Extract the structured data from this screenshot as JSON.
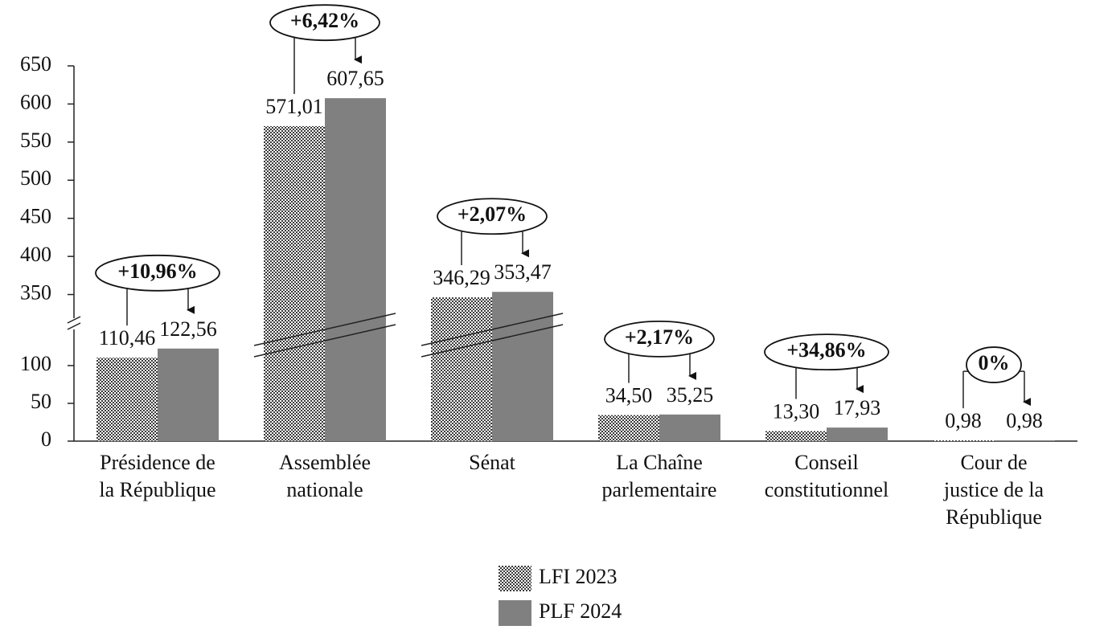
{
  "chart_data": {
    "type": "bar",
    "categories": [
      [
        "Présidence de",
        "la République"
      ],
      [
        "Assemblée",
        "nationale"
      ],
      [
        "Sénat"
      ],
      [
        "La Chaîne",
        "parlementaire"
      ],
      [
        "Conseil",
        "constitutionnel"
      ],
      [
        "Cour de",
        "justice de la",
        "République"
      ]
    ],
    "series": [
      {
        "name": "LFI 2023",
        "color": "#3a3a3a",
        "pattern": "checker",
        "values": [
          110.46,
          571.01,
          346.29,
          34.5,
          13.3,
          0.98
        ],
        "value_labels": [
          "110,46",
          "571,01",
          "346,29",
          "34,50",
          "13,30",
          "0,98"
        ]
      },
      {
        "name": "PLF 2024",
        "color": "#808080",
        "values": [
          122.56,
          607.65,
          353.47,
          35.25,
          17.93,
          0.98
        ],
        "value_labels": [
          "122,56",
          "607,65",
          "353,47",
          "35,25",
          "17,93",
          "0,98"
        ]
      }
    ],
    "changes": [
      "+10,96%",
      "+6,42%",
      "+2,07%",
      "+2,17%",
      "+34,86%",
      "0%"
    ],
    "y_segments": [
      {
        "ylim": [
          0,
          150
        ],
        "yticks": [
          0,
          50,
          100
        ]
      },
      {
        "ylim": [
          320,
          650
        ],
        "yticks": [
          350,
          400,
          450,
          500,
          550,
          600,
          650
        ]
      }
    ],
    "legend": "bottom"
  }
}
